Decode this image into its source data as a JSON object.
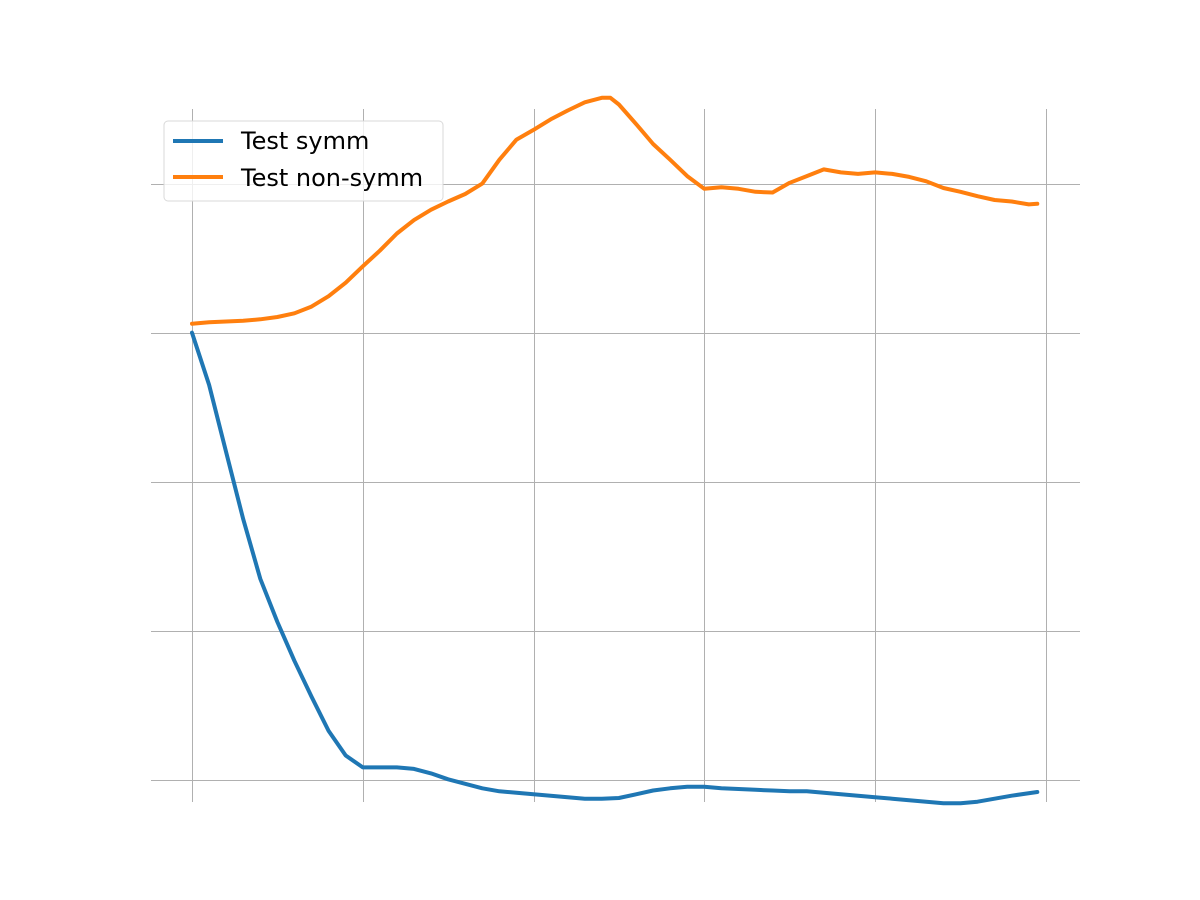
{
  "chart_data": {
    "type": "line",
    "title": "",
    "xlabel": "",
    "ylabel": "",
    "xlim": [
      -0.24,
      5.2
    ],
    "ylim": [
      -0.01,
      0.45
    ],
    "x_gridlines": [
      0,
      1,
      2,
      3,
      4,
      5
    ],
    "y_gridlines": [
      0.0,
      0.1,
      0.2,
      0.3,
      0.4
    ],
    "grid": true,
    "tick_labels_visible": false,
    "legend_position": "upper-left",
    "series": [
      {
        "name": "Test symm",
        "color": "#1f77b4",
        "x": [
          0,
          0.1,
          0.2,
          0.3,
          0.4,
          0.5,
          0.6,
          0.7,
          0.8,
          0.9,
          1.0,
          1.1,
          1.2,
          1.3,
          1.4,
          1.5,
          1.6,
          1.7,
          1.8,
          1.9,
          2.0,
          2.1,
          2.2,
          2.3,
          2.4,
          2.5,
          2.6,
          2.7,
          2.8,
          2.9,
          3.0,
          3.1,
          3.2,
          3.3,
          3.4,
          3.5,
          3.6,
          3.7,
          3.8,
          3.9,
          4.0,
          4.1,
          4.2,
          4.3,
          4.4,
          4.5,
          4.6,
          4.7,
          4.8,
          4.95
        ],
        "values": [
          0.3,
          0.265,
          0.22,
          0.175,
          0.135,
          0.106,
          0.08,
          0.056,
          0.033,
          0.0165,
          0.0085,
          0.0085,
          0.0085,
          0.0075,
          0.0045,
          0.0005,
          -0.0025,
          -0.0055,
          -0.0075,
          -0.0085,
          -0.0095,
          -0.0105,
          -0.0115,
          -0.0125,
          -0.0125,
          -0.012,
          -0.0095,
          -0.007,
          -0.0055,
          -0.0045,
          -0.0045,
          -0.0055,
          -0.006,
          -0.0065,
          -0.007,
          -0.0075,
          -0.0075,
          -0.0085,
          -0.0095,
          -0.0105,
          -0.0115,
          -0.0125,
          -0.0135,
          -0.0145,
          -0.0155,
          -0.0155,
          -0.0145,
          -0.0125,
          -0.0105,
          -0.008
        ]
      },
      {
        "name": "Test non-symm",
        "color": "#ff7f0e",
        "x": [
          0,
          0.1,
          0.2,
          0.3,
          0.4,
          0.5,
          0.6,
          0.7,
          0.8,
          0.9,
          1.0,
          1.1,
          1.2,
          1.3,
          1.4,
          1.5,
          1.6,
          1.7,
          1.8,
          1.9,
          2.0,
          2.1,
          2.2,
          2.3,
          2.4,
          2.45,
          2.5,
          2.6,
          2.7,
          2.8,
          2.9,
          3.0,
          3.1,
          3.2,
          3.3,
          3.4,
          3.5,
          3.6,
          3.7,
          3.8,
          3.9,
          4.0,
          4.1,
          4.2,
          4.3,
          4.4,
          4.5,
          4.6,
          4.7,
          4.8,
          4.9,
          4.95
        ],
        "values": [
          0.306,
          0.307,
          0.3075,
          0.308,
          0.309,
          0.3105,
          0.313,
          0.3175,
          0.3245,
          0.3335,
          0.3445,
          0.355,
          0.3665,
          0.3755,
          0.3825,
          0.388,
          0.393,
          0.4,
          0.416,
          0.4295,
          0.436,
          0.443,
          0.449,
          0.4545,
          0.4575,
          0.4575,
          0.453,
          0.44,
          0.4265,
          0.416,
          0.405,
          0.3965,
          0.3975,
          0.3965,
          0.3945,
          0.394,
          0.4005,
          0.405,
          0.4095,
          0.4075,
          0.4065,
          0.4075,
          0.4065,
          0.4045,
          0.4015,
          0.397,
          0.3945,
          0.3915,
          0.389,
          0.388,
          0.386,
          0.3865
        ]
      }
    ]
  }
}
